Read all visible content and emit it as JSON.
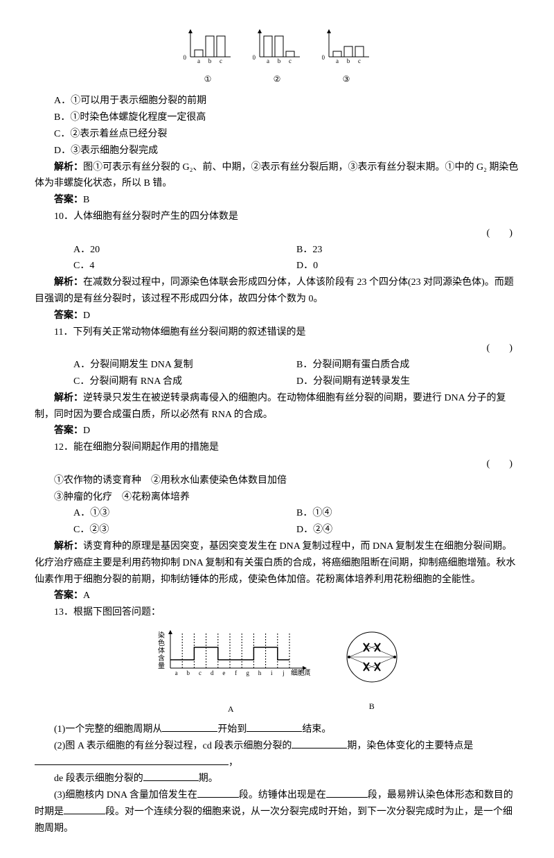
{
  "top_charts": {
    "labels": [
      "a",
      "b",
      "c"
    ],
    "circled": [
      "①",
      "②",
      "③"
    ],
    "series": [
      {
        "vals": [
          10,
          30,
          30
        ],
        "zero": "0"
      },
      {
        "vals": [
          30,
          30,
          8
        ],
        "zero": "0"
      },
      {
        "vals": [
          8,
          15,
          15
        ],
        "zero": "0"
      }
    ],
    "bar_fill": "#ffffff",
    "bar_stroke": "#000000",
    "axis_color": "#000000"
  },
  "q_pretext": {
    "optA": "A．①可以用于表示细胞分裂的前期",
    "optB": "B．①时染色体螺旋化程度一定很高",
    "optC": "C．②表示着丝点已经分裂",
    "optD": "D．③表示细胞分裂完成",
    "analysis_label": "解析：",
    "analysis": "图①可表示有丝分裂的 G₂、前、中期，②表示有丝分裂后期，③表示有丝分裂末期。①中的 G₂ 期染色体为非螺旋化状态，所以 B 错。",
    "answer_label": "答案：",
    "answer": "B"
  },
  "q10": {
    "stem": "10．人体细胞有丝分裂时产生的四分体数是",
    "paren": "(　　)",
    "optA": "A．20",
    "optB": "B．23",
    "optC": "C．4",
    "optD": "D．0",
    "analysis_label": "解析：",
    "analysis": "在减数分裂过程中，同源染色体联会形成四分体，人体该阶段有 23 个四分体(23 对同源染色体)。而题目强调的是有丝分裂时，该过程不形成四分体，故四分体个数为 0。",
    "answer_label": "答案：",
    "answer": "D"
  },
  "q11": {
    "stem": "11．下列有关正常动物体细胞有丝分裂间期的叙述错误的是",
    "paren": "(　　)",
    "optA": "A．分裂间期发生 DNA 复制",
    "optB": "B．分裂间期有蛋白质合成",
    "optC": "C．分裂间期有 RNA 合成",
    "optD": "D．分裂间期有逆转录发生",
    "analysis_label": "解析：",
    "analysis": "逆转录只发生在被逆转录病毒侵入的细胞内。在动物体细胞有丝分裂的间期，要进行 DNA 分子的复制，同时因为要合成蛋白质，所以必然有 RNA 的合成。",
    "answer_label": "答案：",
    "answer": "D"
  },
  "q12": {
    "stem": "12．能在细胞分裂间期起作用的措施是",
    "paren": "(　　)",
    "line1": "①农作物的诱变育种　②用秋水仙素使染色体数目加倍",
    "line2": "③肿瘤的化疗　④花粉离体培养",
    "optA": "A．①③",
    "optB": "B．①④",
    "optC": "C．②③",
    "optD": "D．②④",
    "analysis_label": "解析：",
    "analysis": "诱变育种的原理是基因突变，基因突变发生在 DNA 复制过程中，而 DNA 复制发生在细胞分裂间期。化疗治疗癌症主要是利用药物抑制 DNA 复制和有关蛋白质的合成，将癌细胞阻断在间期，抑制癌细胞增殖。秋水仙素作用于细胞分裂的前期，抑制纺锤体的形成，使染色体加倍。花粉离体培养利用花粉细胞的全能性。",
    "answer_label": "答案：",
    "answer": "A"
  },
  "q13": {
    "stem": "13．根据下图回答问题：",
    "fig": {
      "ylabel": [
        "染",
        "色",
        "体",
        "含",
        "量"
      ],
      "xticks": [
        "a",
        "b",
        "c",
        "d",
        "e",
        "f",
        "g",
        "h",
        "i",
        "j"
      ],
      "xlabel": "细胞周期",
      "labelA": "A",
      "labelB": "B",
      "line_y": [
        12,
        12,
        30,
        30,
        12,
        12,
        12,
        30,
        30,
        12,
        12
      ],
      "axis_color": "#000000",
      "grid_color": "#000000"
    },
    "p1_a": "(1)一个完整的细胞周期从",
    "p1_b": "开始到",
    "p1_c": "结束。",
    "p2_a": "(2)图 A 表示细胞的有丝分裂过程，cd 段表示细胞分裂的",
    "p2_b": "期，染色体变化的主要特点是",
    "p2_c": "，",
    "p3_a": "de 段表示细胞分裂的",
    "p3_b": "期。",
    "p4_a": "(3)细胞核内 DNA 含量加倍发生在",
    "p4_b": "段。纺锤体出现是在",
    "p4_c": "段，最易辨认染色体形态和数目的时期是",
    "p4_d": "段。对一个连续分裂的细胞来说，从一次分裂完成时开始，到下一次分裂完成时为止，是一个细胞周期。"
  }
}
